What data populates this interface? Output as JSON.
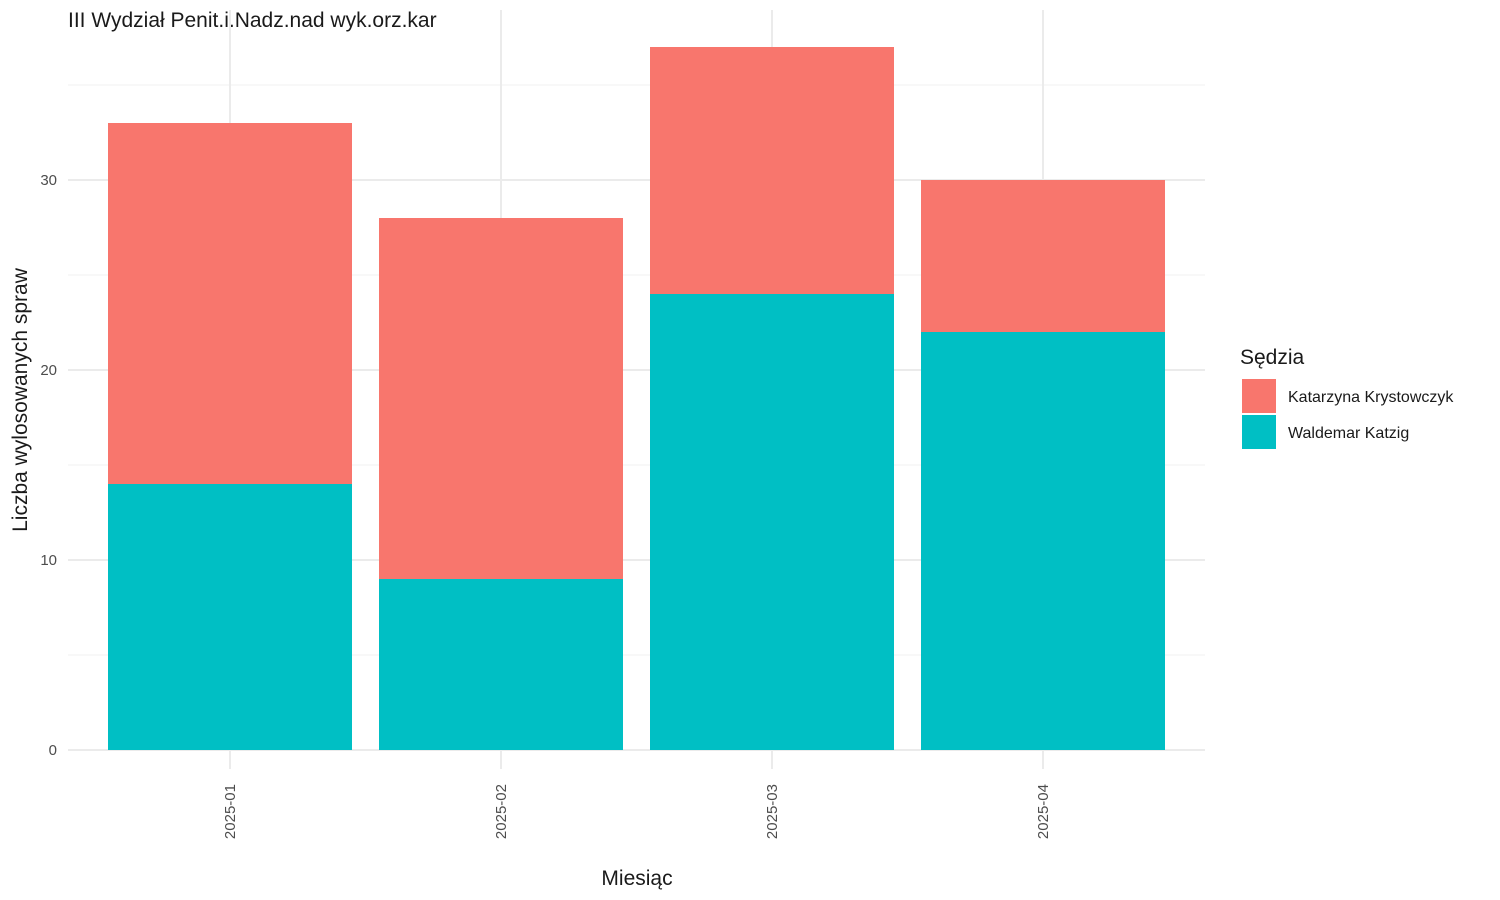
{
  "chart_data": {
    "type": "bar",
    "stacked": true,
    "title": "III Wydział Penit.i.Nadz.nad wyk.orz.kar",
    "xlabel": "Miesiąc",
    "ylabel": "Liczba wylosowanych spraw",
    "categories": [
      "2025-01",
      "2025-02",
      "2025-03",
      "2025-04"
    ],
    "series": [
      {
        "name": "Waldemar Katzig",
        "values": [
          14,
          9,
          24,
          22
        ],
        "color": "#00BFC4"
      },
      {
        "name": "Katarzyna Krystowczyk",
        "values": [
          19,
          19,
          13,
          8
        ],
        "color": "#F8766D"
      }
    ],
    "ylim": [
      0,
      37
    ],
    "yticks": [
      0,
      10,
      20,
      30
    ],
    "grid": true,
    "legend": {
      "title": "Sędzia",
      "placement": "right",
      "order": [
        "Katarzyna Krystowczyk",
        "Waldemar Katzig"
      ]
    }
  }
}
